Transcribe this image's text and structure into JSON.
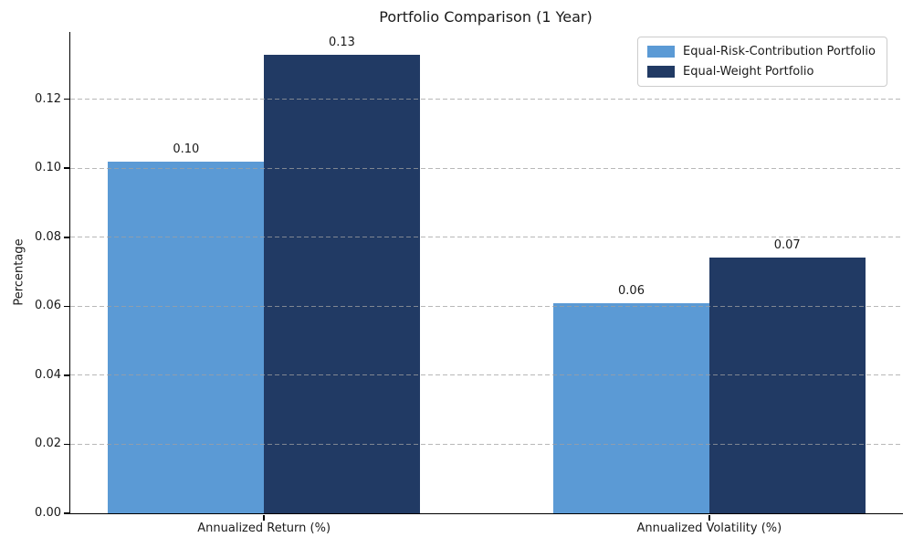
{
  "chart_data": {
    "type": "bar",
    "title": "Portfolio Comparison (1 Year)",
    "ylabel": "Percentage",
    "xlabel": "",
    "categories": [
      "Annualized Return (%)",
      "Annualized Volatility (%)"
    ],
    "series": [
      {
        "name": "Equal-Risk-Contribution Portfolio",
        "color": "#5b9ad5",
        "values": [
          0.102,
          0.061
        ],
        "labels": [
          "0.10",
          "0.06"
        ]
      },
      {
        "name": "Equal-Weight Portfolio",
        "color": "#213a64",
        "values": [
          0.133,
          0.074
        ],
        "labels": [
          "0.13",
          "0.07"
        ]
      }
    ],
    "yticks": [
      0,
      0.02,
      0.04,
      0.06,
      0.08,
      0.1,
      0.12
    ],
    "ytick_labels": [
      "0.00",
      "0.02",
      "0.04",
      "0.06",
      "0.08",
      "0.10",
      "0.12"
    ],
    "ylim": [
      0,
      0.1395
    ],
    "xlim": [
      -0.435,
      1.435
    ],
    "bar_width": 0.35,
    "grid": "horizontal-dashed",
    "grid_on": true,
    "legend_position": "upper-right"
  }
}
